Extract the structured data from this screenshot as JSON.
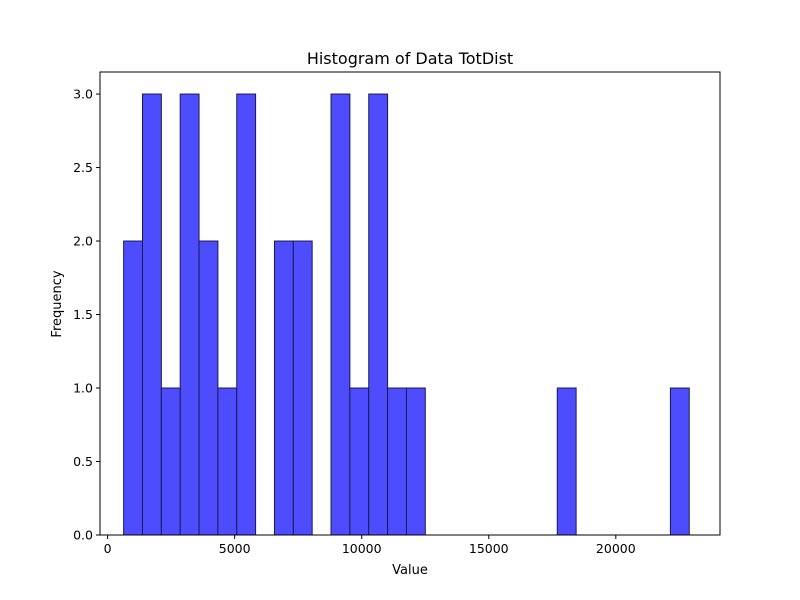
{
  "chart_data": {
    "type": "bar",
    "title": "Histogram of Data TotDist",
    "xlabel": "Value",
    "ylabel": "Frequency",
    "xlim": [
      -300,
      24100
    ],
    "ylim": [
      0,
      3.15
    ],
    "xticks": [
      0,
      5000,
      10000,
      15000,
      20000
    ],
    "xtick_labels": [
      "0",
      "5000",
      "10000",
      "15000",
      "20000"
    ],
    "yticks": [
      0.0,
      0.5,
      1.0,
      1.5,
      2.0,
      2.5,
      3.0
    ],
    "ytick_labels": [
      "0.0",
      "0.5",
      "1.0",
      "1.5",
      "2.0",
      "2.5",
      "3.0"
    ],
    "bin_start": 630,
    "bin_width": 742,
    "counts": [
      2,
      3,
      1,
      3,
      2,
      1,
      3,
      0,
      2,
      2,
      0,
      3,
      1,
      3,
      1,
      1,
      0,
      0,
      0,
      0,
      0,
      0,
      0,
      1,
      0,
      0,
      0,
      0,
      0,
      1
    ],
    "bar_color": "#4d4dff",
    "edge_color": "#1a1a4d",
    "grid": false
  }
}
